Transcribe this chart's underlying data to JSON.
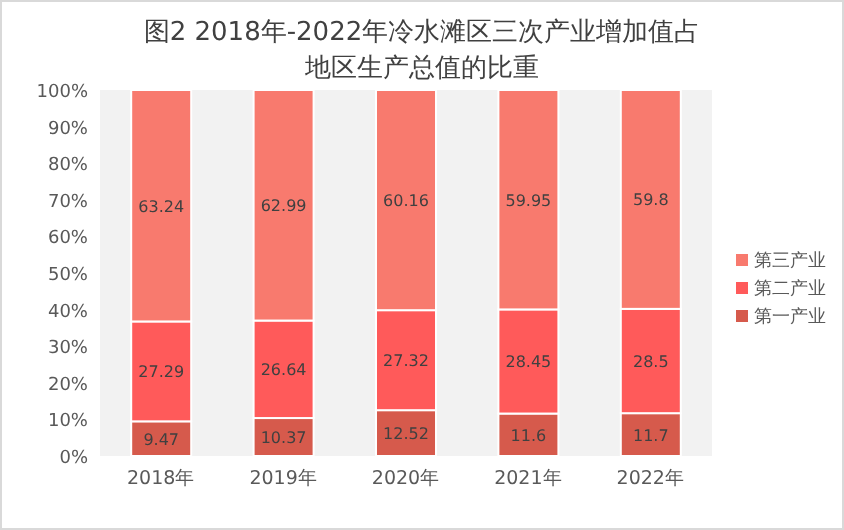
{
  "chart_data": {
    "type": "bar",
    "stacked": true,
    "title": "图2 2018年-2022年冷水滩区三次产业增加值占地区生产总值的比重",
    "categories": [
      "2018年",
      "2019年",
      "2020年",
      "2021年",
      "2022年"
    ],
    "series": [
      {
        "name": "第一产业",
        "color": "#d65a4c",
        "values": [
          9.47,
          10.37,
          12.52,
          11.6,
          11.7
        ]
      },
      {
        "name": "第二产业",
        "color": "#ff5a5a",
        "values": [
          27.29,
          26.64,
          27.32,
          28.45,
          28.5
        ]
      },
      {
        "name": "第三产业",
        "color": "#f87a6e",
        "values": [
          63.24,
          62.99,
          60.16,
          59.95,
          59.8
        ]
      }
    ],
    "ylim": [
      0,
      100
    ],
    "yticks": [
      {
        "value": 0,
        "label": "0%"
      },
      {
        "value": 10,
        "label": "10%"
      },
      {
        "value": 20,
        "label": "20%"
      },
      {
        "value": 30,
        "label": "30%"
      },
      {
        "value": 40,
        "label": "40%"
      },
      {
        "value": 50,
        "label": "50%"
      },
      {
        "value": 60,
        "label": "60%"
      },
      {
        "value": 70,
        "label": "70%"
      },
      {
        "value": 80,
        "label": "80%"
      },
      {
        "value": 90,
        "label": "90%"
      },
      {
        "value": 100,
        "label": "100%"
      }
    ],
    "data_labels": true,
    "legend": "right",
    "grid": false
  }
}
